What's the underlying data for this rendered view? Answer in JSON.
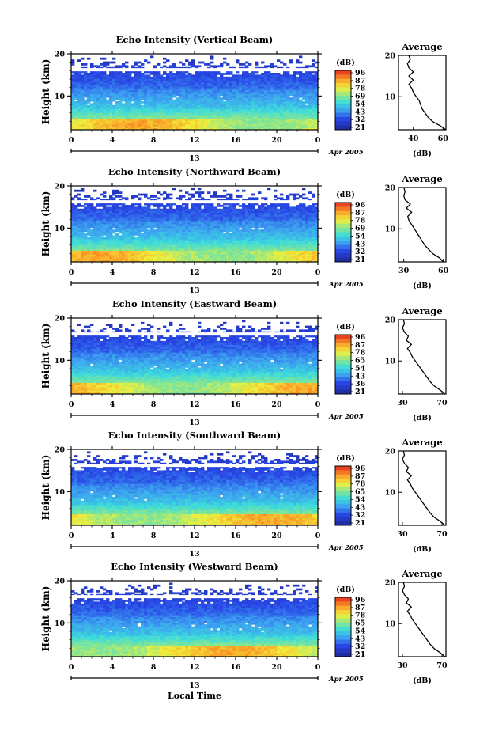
{
  "chart_data": [
    {
      "type": "heatmap",
      "title": "Echo Intensity (Vertical Beam)",
      "ylabel": "Height (km)",
      "ylim": [
        2,
        20
      ],
      "yticks": [
        "20",
        "10"
      ],
      "xticks": [
        "0",
        "4",
        "8",
        "12",
        "16",
        "20",
        "0"
      ],
      "xlim": [
        0,
        24
      ],
      "day_label": "13",
      "date_label": "Apr 2005",
      "colorbar": {
        "unit": "(dB)",
        "ticks": [
          "96",
          "87",
          "78",
          "69",
          "54",
          "43",
          "32",
          "21"
        ]
      },
      "profile": {
        "title": "Average",
        "xlabel": "(dB)",
        "xticks": [
          "40",
          "60"
        ],
        "xlim": [
          30,
          62
        ],
        "yticks": [
          "20",
          "10"
        ],
        "height": [
          2,
          3,
          4,
          5,
          6,
          7,
          8,
          9,
          10,
          11,
          12,
          13,
          14,
          15,
          16,
          17,
          18,
          19,
          20
        ],
        "values": [
          62,
          58,
          53,
          50,
          48,
          46,
          45,
          44,
          42,
          40,
          39,
          37,
          40,
          37,
          40,
          37,
          36,
          38,
          37
        ]
      }
    },
    {
      "type": "heatmap",
      "title": "Echo Intensity (Northward Beam)",
      "ylabel": "Height (km)",
      "ylim": [
        2,
        20
      ],
      "yticks": [
        "20",
        "10"
      ],
      "xticks": [
        "0",
        "4",
        "8",
        "12",
        "16",
        "20",
        "0"
      ],
      "xlim": [
        0,
        24
      ],
      "day_label": "13",
      "date_label": "Apr 2005",
      "colorbar": {
        "unit": "(dB)",
        "ticks": [
          "96",
          "87",
          "78",
          "69",
          "54",
          "43",
          "32",
          "21"
        ]
      },
      "profile": {
        "title": "Average",
        "xlabel": "(dB)",
        "xticks": [
          "30",
          "60"
        ],
        "xlim": [
          26,
          62
        ],
        "yticks": [
          "20",
          "10"
        ],
        "height": [
          2,
          3,
          4,
          5,
          6,
          7,
          8,
          9,
          10,
          11,
          12,
          13,
          14,
          15,
          16,
          17,
          18,
          19,
          20
        ],
        "values": [
          60,
          57,
          52,
          49,
          46,
          44,
          42,
          40,
          38,
          36,
          34,
          33,
          36,
          32,
          35,
          31,
          30,
          31,
          30
        ]
      }
    },
    {
      "type": "heatmap",
      "title": "Echo Intensity (Eastward Beam)",
      "ylabel": "Height (km)",
      "ylim": [
        2,
        20
      ],
      "yticks": [
        "20",
        "10"
      ],
      "xticks": [
        "0",
        "4",
        "8",
        "12",
        "16",
        "20",
        "0"
      ],
      "xlim": [
        0,
        24
      ],
      "day_label": "13",
      "date_label": "Apr 2005",
      "colorbar": {
        "unit": "(dB)",
        "ticks": [
          "96",
          "87",
          "78",
          "65",
          "54",
          "43",
          "36",
          "21"
        ]
      },
      "profile": {
        "title": "Average",
        "xlabel": "(dB)",
        "xticks": [
          "30",
          "70"
        ],
        "xlim": [
          26,
          74
        ],
        "yticks": [
          "20",
          "10"
        ],
        "height": [
          2,
          3,
          4,
          5,
          6,
          7,
          8,
          9,
          10,
          11,
          12,
          13,
          14,
          15,
          16,
          17,
          18,
          19,
          20
        ],
        "values": [
          73,
          68,
          62,
          58,
          55,
          52,
          49,
          46,
          43,
          40,
          38,
          35,
          39,
          34,
          36,
          32,
          30,
          32,
          31
        ]
      }
    },
    {
      "type": "heatmap",
      "title": "Echo Intensity (Southward Beam)",
      "ylabel": "Height (km)",
      "ylim": [
        2,
        20
      ],
      "yticks": [
        "20",
        "10"
      ],
      "xticks": [
        "0",
        "4",
        "8",
        "12",
        "16",
        "20",
        "0"
      ],
      "xlim": [
        0,
        24
      ],
      "day_label": "13",
      "date_label": "Apr 2005",
      "colorbar": {
        "unit": "(dB)",
        "ticks": [
          "96",
          "87",
          "78",
          "65",
          "54",
          "43",
          "32",
          "21"
        ]
      },
      "profile": {
        "title": "Average",
        "xlabel": "(dB)",
        "xticks": [
          "30",
          "70"
        ],
        "xlim": [
          26,
          74
        ],
        "yticks": [
          "20",
          "10"
        ],
        "height": [
          2,
          3,
          4,
          5,
          6,
          7,
          8,
          9,
          10,
          11,
          12,
          13,
          14,
          15,
          16,
          17,
          18,
          19,
          20
        ],
        "values": [
          73,
          68,
          62,
          58,
          55,
          52,
          49,
          46,
          43,
          40,
          38,
          35,
          39,
          34,
          36,
          32,
          30,
          32,
          31
        ]
      }
    },
    {
      "type": "heatmap",
      "title": "Echo Intensity (Westward Beam)",
      "ylabel": "Height (km)",
      "ylim": [
        2,
        20
      ],
      "yticks": [
        "20",
        "10"
      ],
      "xticks": [
        "0",
        "4",
        "8",
        "12",
        "16",
        "20",
        "0"
      ],
      "xlim": [
        0,
        24
      ],
      "day_label": "13",
      "date_label": "Apr 2005",
      "xlabel": "Local Time",
      "colorbar": {
        "unit": "(dB)",
        "ticks": [
          "96",
          "87",
          "78",
          "65",
          "54",
          "43",
          "32",
          "21"
        ]
      },
      "profile": {
        "title": "Average",
        "xlabel": "(dB)",
        "xticks": [
          "30",
          "70"
        ],
        "xlim": [
          26,
          74
        ],
        "yticks": [
          "20",
          "10"
        ],
        "height": [
          2,
          3,
          4,
          5,
          6,
          7,
          8,
          9,
          10,
          11,
          12,
          13,
          14,
          15,
          16,
          17,
          18,
          19,
          20
        ],
        "values": [
          73,
          68,
          62,
          58,
          55,
          52,
          49,
          46,
          43,
          40,
          38,
          35,
          39,
          34,
          36,
          32,
          30,
          32,
          31
        ]
      }
    }
  ]
}
